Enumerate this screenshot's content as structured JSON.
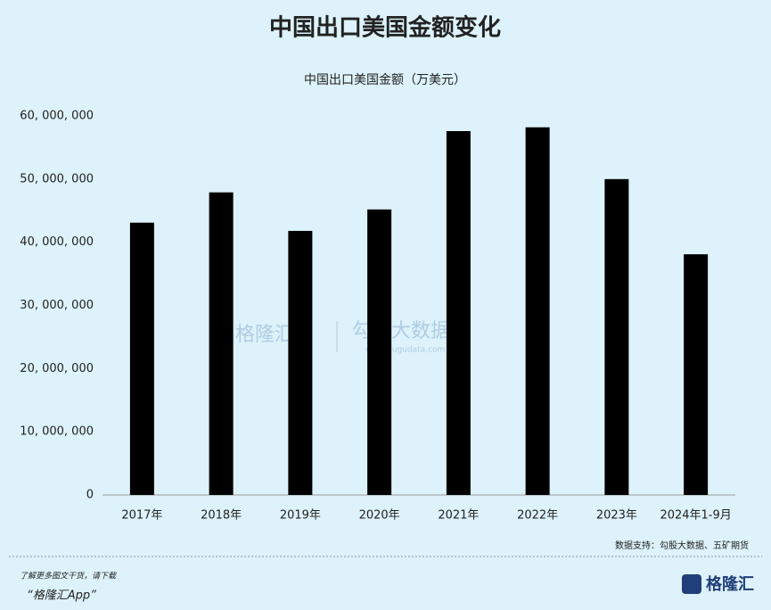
{
  "chart_data": {
    "type": "bar",
    "title": "中国出口美国金额变化",
    "subtitle": "中国出口美国金额（万美元）",
    "categories": [
      "2017年",
      "2018年",
      "2019年",
      "2020年",
      "2021年",
      "2022年",
      "2023年",
      "2024年1-9月"
    ],
    "values": [
      43100000,
      47900000,
      41800000,
      45200000,
      57600000,
      58200000,
      50000000,
      38100000
    ],
    "color": "#000000",
    "ylim": [
      0,
      60000000
    ],
    "yticks": [
      0,
      {
        "value": 10000000,
        "label": "10, 000, 000"
      },
      {
        "value": 20000000,
        "label": "20, 000, 000"
      },
      {
        "value": 30000000,
        "label": "30, 000, 000"
      },
      {
        "value": 40000000,
        "label": "40, 000, 000"
      },
      {
        "value": 50000000,
        "label": "50, 000, 000"
      },
      {
        "value": 60000000,
        "label": "60, 000, 000"
      }
    ],
    "grid": false,
    "source": "数据支持：勾股大数据、五矿期货"
  },
  "watermark": {
    "left": "格隆汇",
    "right": "勾股大数据",
    "url": "www.gugudata.com"
  },
  "footer": {
    "line1": "了解更多图文干货，请下载",
    "line2": "“格隆汇App”",
    "logo": "格隆汇"
  }
}
